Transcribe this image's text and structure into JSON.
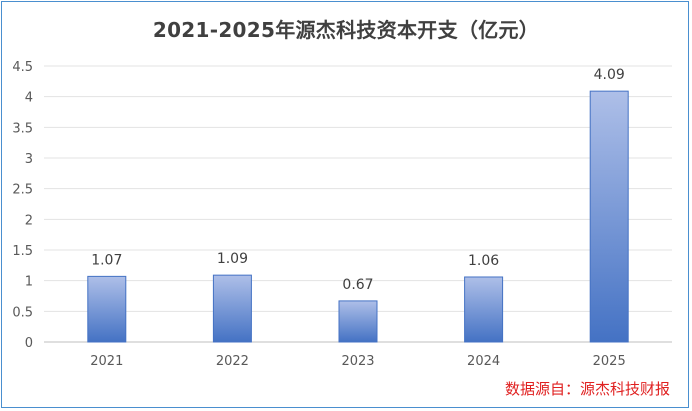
{
  "chart_data": {
    "type": "bar",
    "title": "2021-2025年源杰科技资本开支（亿元）",
    "categories": [
      "2021",
      "2022",
      "2023",
      "2024",
      "2025"
    ],
    "values": [
      1.07,
      1.09,
      0.67,
      1.06,
      4.09
    ],
    "data_labels": [
      "1.07",
      "1.09",
      "0.67",
      "1.06",
      "4.09"
    ],
    "yticks": [
      "0",
      "0.5",
      "1",
      "1.5",
      "2",
      "2.5",
      "3",
      "3.5",
      "4",
      "4.5"
    ],
    "ylim": [
      0,
      4.5
    ],
    "grid": true,
    "legend": "none",
    "bar_color_top": "#aebfe8",
    "bar_color_bottom": "#4472c4"
  },
  "source_note": "数据源自：源杰科技财报"
}
